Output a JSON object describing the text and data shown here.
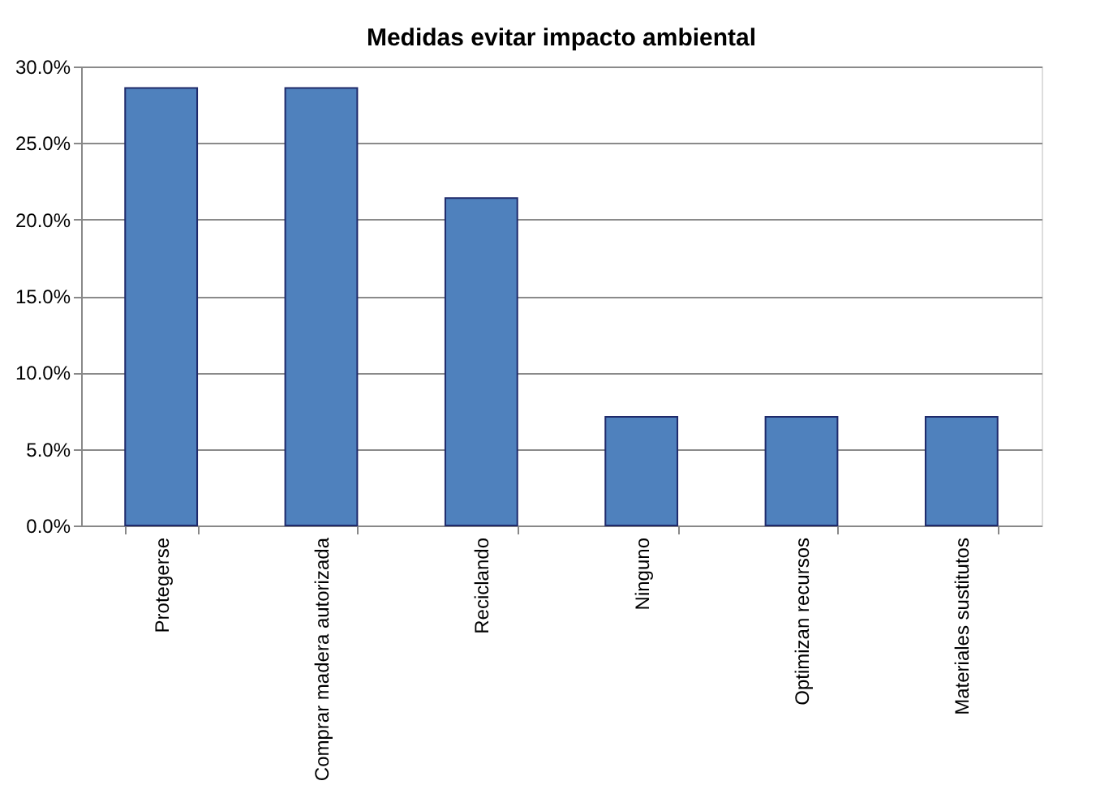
{
  "chart_data": {
    "type": "bar",
    "title": "Medidas evitar impacto ambiental",
    "categories": [
      "Protegerse",
      "Comprar madera autorizada",
      "Reciclando",
      "Ninguno",
      "Optimizan recursos",
      "Materiales sustitutos"
    ],
    "series": [
      {
        "color": "#4f81bd",
        "values": [
          28.6,
          28.6,
          21.4,
          7.1,
          7.1,
          7.1
        ]
      }
    ],
    "ylim": [
      0,
      30
    ],
    "yticks": [
      {
        "value": 0,
        "label": "0.0%"
      },
      {
        "value": 5,
        "label": "5.0%"
      },
      {
        "value": 10,
        "label": "10.0%"
      },
      {
        "value": 15,
        "label": "15.0%"
      },
      {
        "value": 20,
        "label": "20.0%"
      },
      {
        "value": 25,
        "label": "25.0%"
      },
      {
        "value": 30,
        "label": "30.0%"
      }
    ],
    "grid": "y",
    "legend": false
  }
}
